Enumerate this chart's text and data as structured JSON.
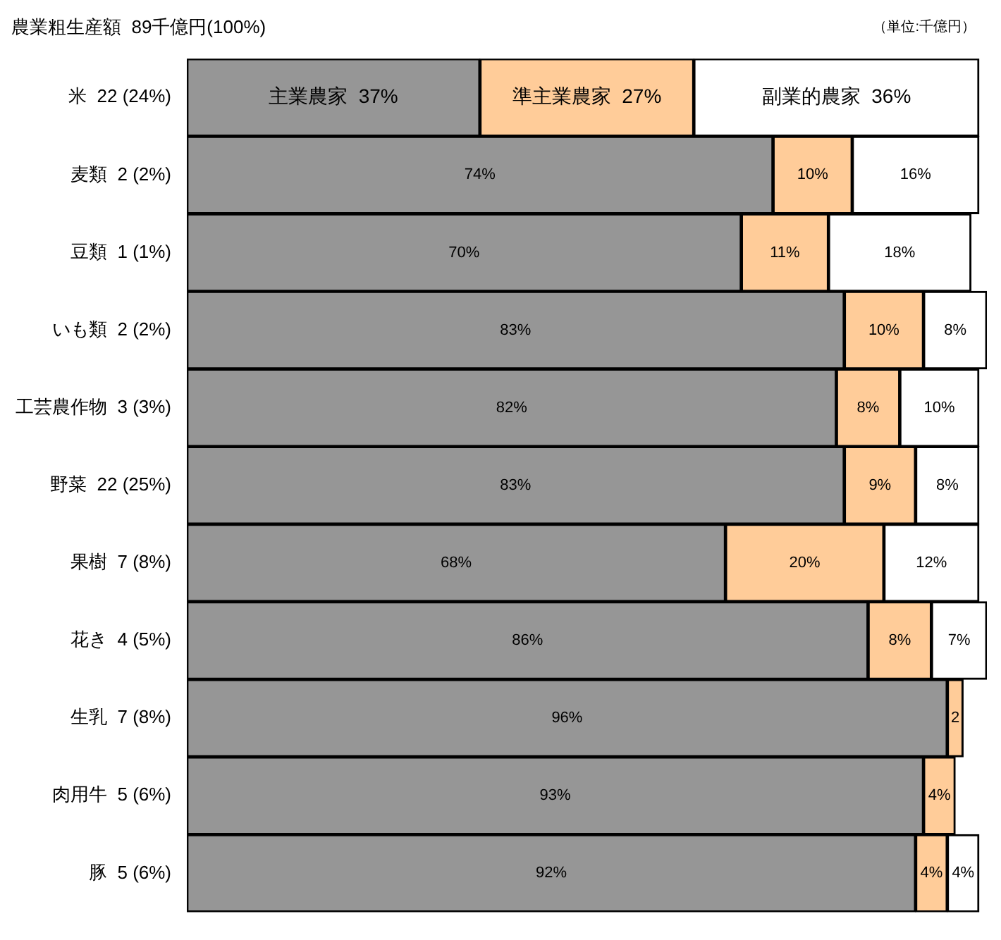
{
  "chart_data": {
    "type": "bar",
    "orientation": "horizontal",
    "stacked": true,
    "title": "農業粗生産額  89千億円(100%)",
    "annotations": [
      "（単位:千億円）"
    ],
    "categories": [
      "米  22 (24%)",
      "麦類  2 (2%)",
      "豆類  1 (1%)",
      "いも類  2 (2%)",
      "工芸農作物  3 (3%)",
      "野菜  22 (25%)",
      "果樹  7 (8%)",
      "花き  4 (5%)",
      "生乳  7 (8%)",
      "肉用牛  5 (6%)",
      "豚  5 (6%)"
    ],
    "series": [
      {
        "name": "主業農家",
        "color": "#969696",
        "values": [
          37,
          74,
          70,
          83,
          82,
          83,
          68,
          86,
          96,
          93,
          92
        ],
        "value_labels": [
          "37%",
          "74%",
          "70%",
          "83%",
          "82%",
          "83%",
          "68%",
          "86%",
          "96%",
          "93%",
          "92%"
        ]
      },
      {
        "name": "準主業農家",
        "color": "#ffcc99",
        "values": [
          27,
          10,
          11,
          10,
          8,
          9,
          20,
          8,
          2,
          4,
          4
        ],
        "value_labels": [
          "27%",
          "10%",
          "11%",
          "10%",
          "8%",
          "9%",
          "20%",
          "8%",
          "2",
          "4%",
          "4%"
        ]
      },
      {
        "name": "副業的農家",
        "color": "#ffffff",
        "values": [
          36,
          16,
          18,
          8,
          10,
          8,
          12,
          7,
          null,
          null,
          4
        ],
        "value_labels": [
          "36%",
          "16%",
          "18%",
          "8%",
          "10%",
          "8%",
          "12%",
          "7%",
          null,
          null,
          "4%"
        ]
      }
    ],
    "legend": false,
    "grid": false,
    "tick_labels": "y"
  }
}
